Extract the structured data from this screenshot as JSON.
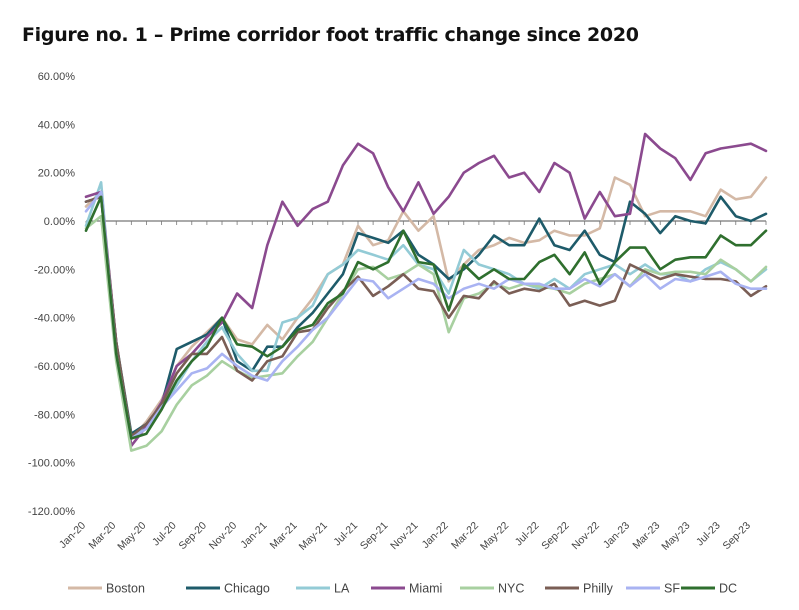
{
  "chart_data": {
    "type": "line",
    "title": "Figure no. 1 – Prime corridor foot traffic change since 2020",
    "xlabel": "",
    "ylabel": "",
    "ylim": [
      -120,
      60
    ],
    "y_ticks": [
      "60.00%",
      "40.00%",
      "20.00%",
      "0.00%",
      "-20.00%",
      "-40.00%",
      "-60.00%",
      "-80.00%",
      "-100.00%",
      "-120.00%"
    ],
    "y_tick_values": [
      60,
      40,
      20,
      0,
      -20,
      -40,
      -60,
      -80,
      -100,
      -120
    ],
    "x": [
      "Jan-20",
      "Feb-20",
      "Mar-20",
      "Apr-20",
      "May-20",
      "Jun-20",
      "Jul-20",
      "Aug-20",
      "Sep-20",
      "Oct-20",
      "Nov-20",
      "Dec-20",
      "Jan-21",
      "Feb-21",
      "Mar-21",
      "Apr-21",
      "May-21",
      "Jun-21",
      "Jul-21",
      "Aug-21",
      "Sep-21",
      "Oct-21",
      "Nov-21",
      "Dec-21",
      "Jan-22",
      "Feb-22",
      "Mar-22",
      "Apr-22",
      "May-22",
      "Jun-22",
      "Jul-22",
      "Aug-22",
      "Sep-22",
      "Oct-22",
      "Nov-22",
      "Dec-22",
      "Jan-23",
      "Feb-23",
      "Mar-23",
      "Apr-23",
      "May-23",
      "Jun-23",
      "Jul-23",
      "Aug-23",
      "Sep-23",
      "Oct-23"
    ],
    "x_tick_labels": [
      "Jan-20",
      "Mar-20",
      "May-20",
      "Jul-20",
      "Sep-20",
      "Nov-20",
      "Jan-21",
      "Mar-21",
      "May-21",
      "Jul-21",
      "Sep-21",
      "Nov-21",
      "Jan-22",
      "Mar-22",
      "May-22",
      "Jul-22",
      "Sep-22",
      "Nov-22",
      "Jan-23",
      "Mar-23",
      "May-23",
      "Jul-23",
      "Sep-23"
    ],
    "grid": false,
    "legend_position": "bottom",
    "series": [
      {
        "name": "Boston",
        "color": "#d4b9a6",
        "values": [
          6,
          12,
          -52,
          -90,
          -83,
          -74,
          -60,
          -52,
          -46,
          -40,
          -49,
          -51,
          -43,
          -49,
          -40,
          -32,
          -22,
          -18,
          -2,
          -10,
          -8,
          4,
          -4,
          2,
          -25,
          -18,
          -12,
          -10,
          -7,
          -9,
          -8,
          -4,
          -6,
          -6,
          -3,
          18,
          15,
          2,
          4,
          4,
          4,
          2,
          13,
          9,
          10,
          18
        ]
      },
      {
        "name": "Chicago",
        "color": "#1e5b6a",
        "values": [
          8,
          10,
          -50,
          -88,
          -84,
          -76,
          -53,
          -50,
          -47,
          -40,
          -58,
          -62,
          -52,
          -52,
          -44,
          -38,
          -30,
          -22,
          -5,
          -7,
          -9,
          -4,
          -14,
          -18,
          -24,
          -20,
          -14,
          -6,
          -10,
          -10,
          1,
          -10,
          -12,
          -4,
          -14,
          -17,
          8,
          3,
          -5,
          2,
          0,
          -1,
          10,
          2,
          0,
          3
        ]
      },
      {
        "name": "LA",
        "color": "#93cbd6",
        "values": [
          -2,
          16,
          -55,
          -90,
          -85,
          -77,
          -68,
          -58,
          -50,
          -44,
          -55,
          -62,
          -62,
          -42,
          -40,
          -35,
          -22,
          -18,
          -12,
          -14,
          -16,
          -10,
          -18,
          -20,
          -30,
          -12,
          -18,
          -20,
          -22,
          -26,
          -28,
          -24,
          -28,
          -22,
          -20,
          -18,
          -22,
          -18,
          -22,
          -22,
          -25,
          -20,
          -17,
          -20,
          -25,
          -20
        ]
      },
      {
        "name": "Miami",
        "color": "#8b4a8f",
        "values": [
          10,
          12,
          -50,
          -93,
          -85,
          -75,
          -60,
          -55,
          -48,
          -42,
          -30,
          -36,
          -10,
          8,
          -2,
          5,
          8,
          23,
          32,
          28,
          14,
          4,
          16,
          3,
          10,
          20,
          24,
          27,
          18,
          20,
          12,
          24,
          20,
          1,
          12,
          2,
          3,
          36,
          30,
          26,
          17,
          28,
          30,
          31,
          32,
          29
        ]
      },
      {
        "name": "NYC",
        "color": "#a8d0a0",
        "values": [
          -3,
          2,
          -58,
          -95,
          -93,
          -87,
          -76,
          -68,
          -64,
          -58,
          -62,
          -65,
          -64,
          -63,
          -56,
          -50,
          -40,
          -30,
          -20,
          -19,
          -24,
          -22,
          -18,
          -22,
          -46,
          -32,
          -30,
          -26,
          -28,
          -26,
          -27,
          -28,
          -30,
          -26,
          -24,
          -22,
          -27,
          -20,
          -22,
          -21,
          -21,
          -22,
          -16,
          -20,
          -25,
          -19
        ]
      },
      {
        "name": "Philly",
        "color": "#7a5e55",
        "values": [
          8,
          10,
          -50,
          -89,
          -84,
          -76,
          -63,
          -55,
          -55,
          -48,
          -62,
          -66,
          -58,
          -56,
          -46,
          -45,
          -36,
          -29,
          -23,
          -31,
          -27,
          -22,
          -28,
          -29,
          -40,
          -31,
          -32,
          -25,
          -30,
          -28,
          -29,
          -26,
          -35,
          -33,
          -35,
          -33,
          -18,
          -21,
          -24,
          -22,
          -23,
          -24,
          -24,
          -25,
          -31,
          -27
        ]
      },
      {
        "name": "SF",
        "color": "#a9b3f2",
        "values": [
          4,
          12,
          -55,
          -90,
          -86,
          -77,
          -70,
          -63,
          -61,
          -55,
          -60,
          -64,
          -66,
          -58,
          -52,
          -45,
          -40,
          -32,
          -24,
          -25,
          -32,
          -28,
          -24,
          -26,
          -32,
          -28,
          -26,
          -28,
          -24,
          -26,
          -26,
          -28,
          -28,
          -24,
          -27,
          -22,
          -27,
          -22,
          -28,
          -24,
          -25,
          -23,
          -21,
          -26,
          -28,
          -28
        ]
      },
      {
        "name": "DC",
        "color": "#2f6f2e",
        "values": [
          -4,
          10,
          -55,
          -90,
          -88,
          -78,
          -66,
          -58,
          -52,
          -40,
          -51,
          -52,
          -56,
          -52,
          -45,
          -43,
          -34,
          -30,
          -17,
          -20,
          -17,
          -4,
          -17,
          -18,
          -37,
          -18,
          -24,
          -20,
          -24,
          -24,
          -17,
          -14,
          -22,
          -13,
          -26,
          -17,
          -11,
          -11,
          -20,
          -16,
          -15,
          -15,
          -6,
          -10,
          -10,
          -4
        ]
      }
    ]
  }
}
